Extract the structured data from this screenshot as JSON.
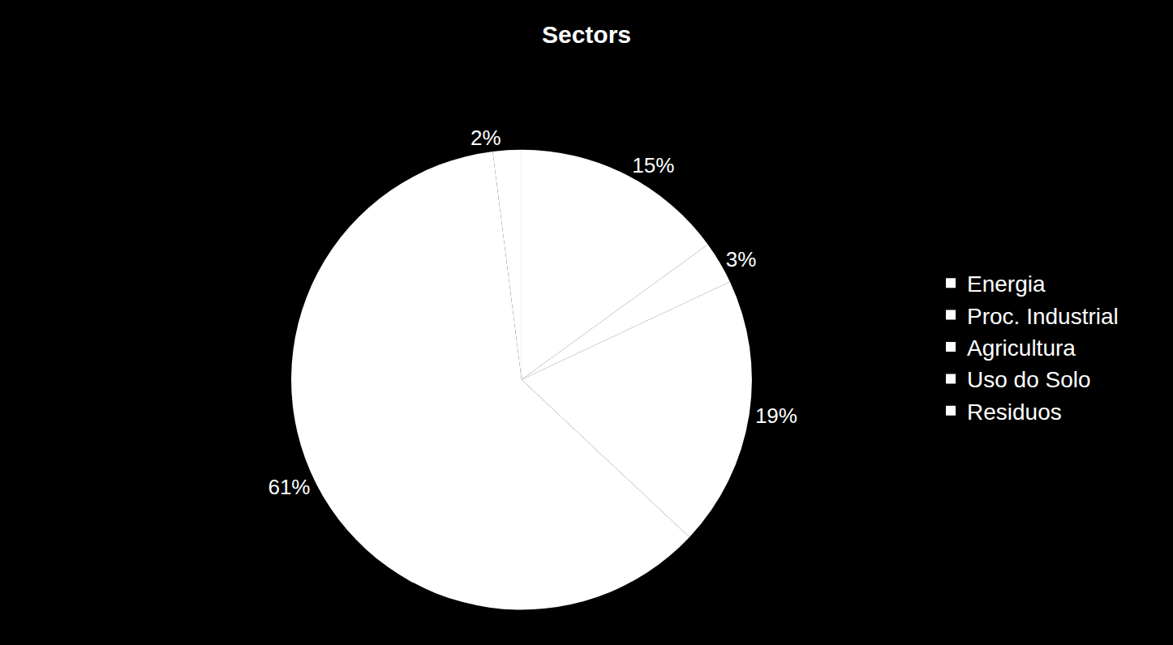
{
  "chart_data": {
    "type": "pie",
    "title": "Sectors",
    "categories": [
      "Energia",
      "Proc. Industrial",
      "Agricultura",
      "Uso do Solo",
      "Residuos"
    ],
    "values": [
      15,
      3,
      19,
      61,
      2
    ],
    "value_labels": [
      "15%",
      "3%",
      "19%",
      "61%",
      "2%"
    ],
    "colors": [
      "#ffffff",
      "#ffffff",
      "#ffffff",
      "#ffffff",
      "#ffffff"
    ],
    "data_labels": true,
    "legend": "right"
  }
}
